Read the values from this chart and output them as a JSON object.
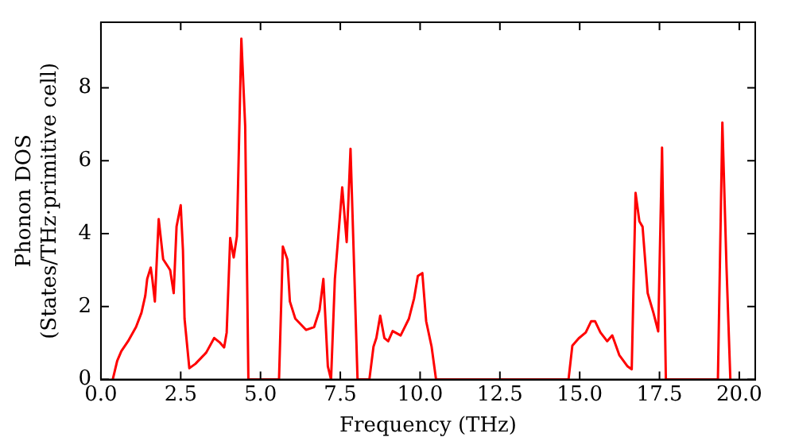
{
  "chart_data": {
    "type": "line",
    "xlabel": "Frequency (THz)",
    "ylabel": "Phonon DOS\n(States/THz·primitive cell)",
    "xlim": [
      0,
      20.5
    ],
    "ylim": [
      0,
      9.8
    ],
    "xticks": [
      {
        "value": 0,
        "label": "0.0"
      },
      {
        "value": 2.5,
        "label": "2.5"
      },
      {
        "value": 5,
        "label": "5.0"
      },
      {
        "value": 7.5,
        "label": "7.5"
      },
      {
        "value": 10,
        "label": "10.0"
      },
      {
        "value": 12.5,
        "label": "12.5"
      },
      {
        "value": 15,
        "label": "15.0"
      },
      {
        "value": 17.5,
        "label": "17.5"
      },
      {
        "value": 20,
        "label": "20.0"
      }
    ],
    "yticks": [
      0,
      2,
      4,
      6,
      8
    ],
    "grid": false,
    "legend": false,
    "marker": "none",
    "line_style": "solid",
    "series": [
      {
        "color": "#ff0000",
        "x": [
          0.37,
          0.51,
          0.64,
          0.85,
          1.1,
          1.27,
          1.39,
          1.45,
          1.56,
          1.61,
          1.69,
          1.81,
          1.95,
          2.12,
          2.17,
          2.28,
          2.37,
          2.5,
          2.57,
          2.62,
          2.77,
          2.96,
          3.3,
          3.55,
          3.72,
          3.86,
          3.94,
          4.05,
          4.16,
          4.26,
          4.4,
          4.52,
          4.62,
          5.58,
          5.7,
          5.84,
          5.92,
          6.09,
          6.43,
          6.68,
          6.85,
          6.97,
          7.11,
          7.21,
          7.33,
          7.56,
          7.7,
          7.82,
          8.04,
          8.41,
          8.54,
          8.63,
          8.75,
          8.88,
          9.0,
          9.14,
          9.39,
          9.65,
          9.81,
          9.93,
          10.07,
          10.19,
          10.36,
          10.5,
          14.65,
          14.77,
          14.97,
          15.19,
          15.36,
          15.48,
          15.65,
          15.86,
          16.02,
          16.24,
          16.5,
          16.63,
          16.75,
          16.87,
          16.97,
          17.13,
          17.31,
          17.46,
          17.58,
          17.7,
          19.33,
          19.47,
          19.6,
          19.72
        ],
        "values": [
          0,
          0.51,
          0.78,
          1.05,
          1.44,
          1.83,
          2.3,
          2.76,
          3.07,
          2.76,
          2.14,
          4.4,
          3.3,
          3.07,
          3.0,
          2.37,
          4.2,
          4.78,
          3.55,
          1.67,
          0.31,
          0.43,
          0.74,
          1.14,
          1.02,
          0.88,
          1.29,
          3.88,
          3.35,
          3.93,
          9.35,
          6.95,
          0,
          0,
          3.65,
          3.3,
          2.14,
          1.67,
          1.36,
          1.44,
          1.91,
          2.76,
          0.36,
          0,
          2.76,
          5.27,
          3.77,
          6.33,
          0,
          0,
          0.9,
          1.14,
          1.75,
          1.14,
          1.05,
          1.33,
          1.21,
          1.67,
          2.22,
          2.84,
          2.92,
          1.6,
          0.9,
          0,
          0,
          0.93,
          1.13,
          1.29,
          1.6,
          1.6,
          1.29,
          1.05,
          1.21,
          0.67,
          0.36,
          0.28,
          5.12,
          4.34,
          4.19,
          2.37,
          1.83,
          1.32,
          6.36,
          0,
          0,
          7.05,
          3.07,
          0
        ]
      }
    ]
  }
}
